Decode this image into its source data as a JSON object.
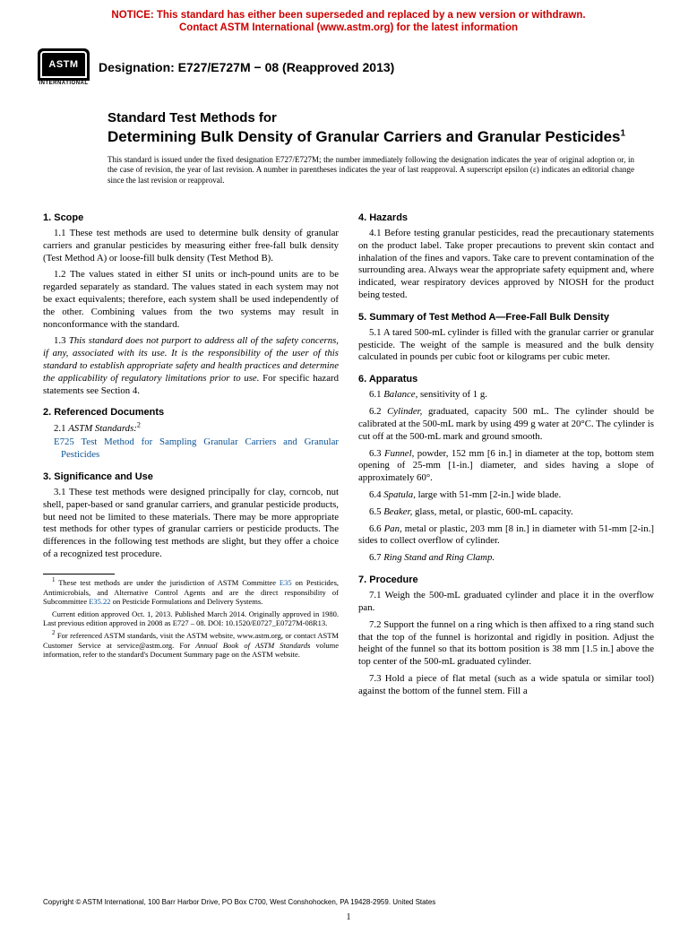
{
  "notice": {
    "line1": "NOTICE: This standard has either been superseded and replaced by a new version or withdrawn.",
    "line2": "Contact ASTM International (www.astm.org) for the latest information",
    "color": "#cc0000"
  },
  "logo": {
    "abbrev": "ASTM",
    "sub": "INTERNATIONAL"
  },
  "designation": "Designation: E727/E727M − 08 (Reapproved 2013)",
  "title": {
    "kicker": "Standard Test Methods for",
    "main": "Determining Bulk Density of Granular Carriers and Granular Pesticides",
    "sup": "1"
  },
  "issuance": "This standard is issued under the fixed designation E727/E727M; the number immediately following the designation indicates the year of original adoption or, in the case of revision, the year of last revision. A number in parentheses indicates the year of last reapproval. A superscript epsilon (ε) indicates an editorial change since the last revision or reapproval.",
  "left": {
    "s1": {
      "head": "1. Scope",
      "p1": "1.1 These test methods are used to determine bulk density of granular carriers and granular pesticides by measuring either free-fall bulk density (Test Method A) or loose-fill bulk density (Test Method B).",
      "p2": "1.2 The values stated in either SI units or inch-pound units are to be regarded separately as standard. The values stated in each system may not be exact equivalents; therefore, each system shall be used independently of the other. Combining values from the two systems may result in nonconformance with the standard.",
      "p3a": "1.3 ",
      "p3b": "This standard does not purport to address all of the safety concerns, if any, associated with its use. It is the responsibility of the user of this standard to establish appropriate safety and health practices and determine the applicability of regulatory limitations prior to use.",
      "p3c": " For specific hazard statements see Section 4."
    },
    "s2": {
      "head": "2. Referenced Documents",
      "p1a": "2.1 ",
      "p1b": "ASTM Standards:",
      "p1sup": "2",
      "ref_code": "E725",
      "ref_title": " Test Method for Sampling Granular Carriers and Granular Pesticides"
    },
    "s3": {
      "head": "3. Significance and Use",
      "p1": "3.1 These test methods were designed principally for clay, corncob, nut shell, paper-based or sand granular carriers, and granular pesticide products, but need not be limited to these materials. There may be more appropriate test methods for other types of granular carriers or pesticide products. The differences in the following test methods are slight, but they offer a choice of a recognized test procedure."
    },
    "fn1": {
      "sup": "1",
      "a": " These test methods are under the jurisdiction of ASTM Committee ",
      "link1": "E35",
      "b": " on Pesticides, Antimicrobials, and Alternative Control Agents and are the direct responsibility of Subcommittee ",
      "link2": "E35.22",
      "c": " on Pesticide Formulations and Delivery Systems.",
      "d": "Current edition approved Oct. 1, 2013. Published March 2014. Originally approved in 1980. Last previous edition approved in 2008 as E727 – 08. DOI: 10.1520/E0727_E0727M-08R13."
    },
    "fn2": {
      "sup": "2",
      "a": " For referenced ASTM standards, visit the ASTM website, www.astm.org, or contact ASTM Customer Service at service@astm.org. For ",
      "b": "Annual Book of ASTM Standards",
      "c": " volume information, refer to the standard's Document Summary page on the ASTM website."
    }
  },
  "right": {
    "s4": {
      "head": "4. Hazards",
      "p1": "4.1 Before testing granular pesticides, read the precautionary statements on the product label. Take proper precautions to prevent skin contact and inhalation of the fines and vapors. Take care to prevent contamination of the surrounding area. Always wear the appropriate safety equipment and, where indicated, wear respiratory devices approved by NIOSH for the product being tested."
    },
    "s5": {
      "head": "5. Summary of Test Method A—Free-Fall Bulk Density",
      "p1": "5.1 A tared 500-mL cylinder is filled with the granular carrier or granular pesticide. The weight of the sample is measured and the bulk density calculated in pounds per cubic foot or kilograms per cubic meter."
    },
    "s6": {
      "head": "6. Apparatus",
      "p1a": "6.1 ",
      "p1b": "Balance,",
      "p1c": " sensitivity of 1 g.",
      "p2a": "6.2 ",
      "p2b": "Cylinder,",
      "p2c": " graduated, capacity 500 mL. The cylinder should be calibrated at the 500-mL mark by using 499 g water at 20°C. The cylinder is cut off at the 500-mL mark and ground smooth.",
      "p3a": "6.3 ",
      "p3b": "Funnel,",
      "p3c": " powder, 152 mm [6 in.] in diameter at the top, bottom stem opening of 25-mm [1-in.] diameter, and sides having a slope of approximately 60°.",
      "p4a": "6.4 ",
      "p4b": "Spatula,",
      "p4c": " large with 51-mm [2-in.] wide blade.",
      "p5a": "6.5 ",
      "p5b": "Beaker,",
      "p5c": " glass, metal, or plastic, 600-mL capacity.",
      "p6a": "6.6 ",
      "p6b": "Pan,",
      "p6c": " metal or plastic, 203 mm [8 in.] in diameter with 51-mm [2-in.] sides to collect overflow of cylinder.",
      "p7a": "6.7 ",
      "p7b": "Ring Stand and Ring Clamp."
    },
    "s7": {
      "head": "7. Procedure",
      "p1": "7.1 Weigh the 500-mL graduated cylinder and place it in the overflow pan.",
      "p2": "7.2 Support the funnel on a ring which is then affixed to a ring stand such that the top of the funnel is horizontal and rigidly in position. Adjust the height of the funnel so that its bottom position is 38 mm [1.5 in.] above the top center of the 500-mL graduated cylinder.",
      "p3": "7.3 Hold a piece of flat metal (such as a wide spatula or similar tool) against the bottom of the funnel stem. Fill a"
    }
  },
  "copyright": "Copyright © ASTM International, 100 Barr Harbor Drive, PO Box C700, West Conshohocken, PA 19428-2959. United States",
  "page": "1"
}
